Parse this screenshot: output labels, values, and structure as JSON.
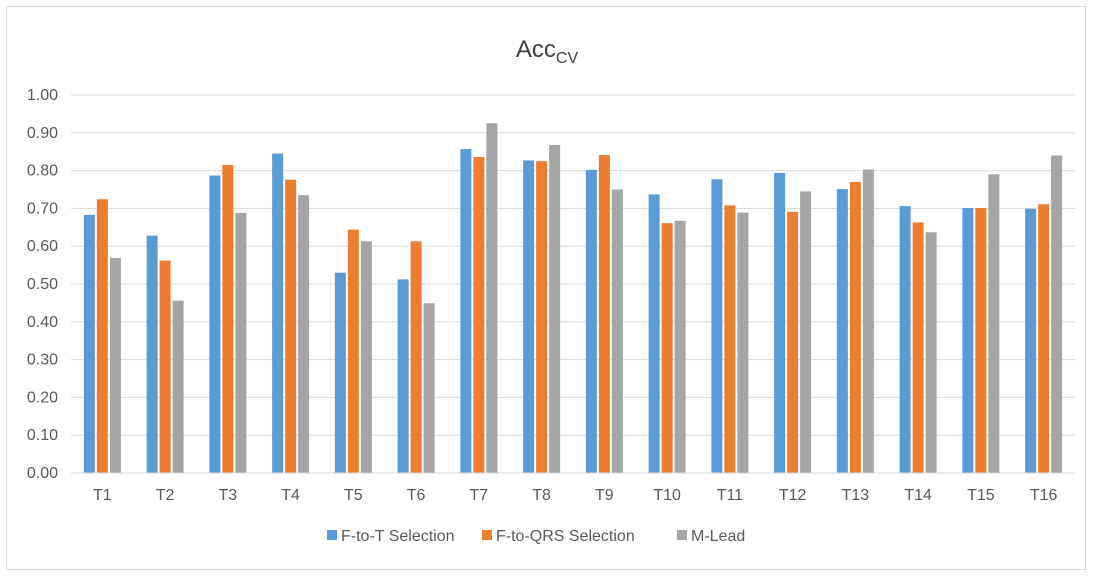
{
  "chart_data": {
    "type": "bar",
    "title": "Acc",
    "title_subscript": "CV",
    "xlabel": "",
    "ylabel": "",
    "ylim": [
      0,
      1.0
    ],
    "yticks": [
      "0.00",
      "0.10",
      "0.20",
      "0.30",
      "0.40",
      "0.50",
      "0.60",
      "0.70",
      "0.80",
      "0.90",
      "1.00"
    ],
    "grid": true,
    "legend_position": "bottom",
    "categories": [
      "T1",
      "T2",
      "T3",
      "T4",
      "T5",
      "T6",
      "T7",
      "T8",
      "T9",
      "T10",
      "T11",
      "T12",
      "T13",
      "T14",
      "T15",
      "T16"
    ],
    "series": [
      {
        "name": "F-to-T Selection",
        "color": "#5b9bd5",
        "values": [
          0.683,
          0.628,
          0.787,
          0.845,
          0.53,
          0.512,
          0.857,
          0.827,
          0.802,
          0.737,
          0.777,
          0.794,
          0.751,
          0.706,
          0.701,
          0.699
        ]
      },
      {
        "name": "F-to-QRS Selection",
        "color": "#ed7d31",
        "values": [
          0.724,
          0.562,
          0.815,
          0.776,
          0.644,
          0.613,
          0.836,
          0.825,
          0.841,
          0.661,
          0.708,
          0.691,
          0.77,
          0.663,
          0.701,
          0.711
        ]
      },
      {
        "name": "M-Lead",
        "color": "#a5a5a5",
        "values": [
          0.569,
          0.456,
          0.688,
          0.735,
          0.613,
          0.449,
          0.925,
          0.868,
          0.75,
          0.667,
          0.689,
          0.745,
          0.803,
          0.637,
          0.79,
          0.84
        ]
      }
    ]
  }
}
